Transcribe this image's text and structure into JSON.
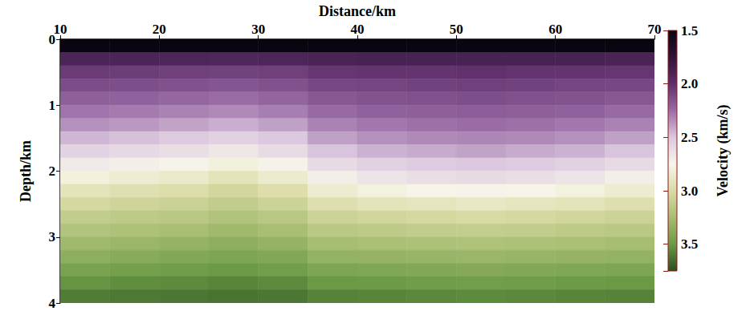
{
  "chart_data": {
    "type": "heatmap",
    "x_label": "Distance/km",
    "y_label": "Depth/km",
    "xlim": [
      10,
      70
    ],
    "xticks": [
      10,
      20,
      30,
      40,
      50,
      60,
      70
    ],
    "ylim": [
      0,
      4
    ],
    "yticks": [
      0,
      1,
      2,
      3,
      4
    ],
    "cells": {
      "x": [
        12.5,
        17.5,
        22.5,
        27.5,
        32.5,
        37.5,
        42.5,
        47.5,
        52.5,
        57.5,
        62.5,
        67.5
      ],
      "y": [
        0.1,
        0.3,
        0.5,
        0.7,
        0.9,
        1.1,
        1.3,
        1.5,
        1.7,
        1.9,
        2.1,
        2.3,
        2.5,
        2.7,
        2.9,
        3.1,
        3.3,
        3.5,
        3.7,
        3.9
      ],
      "values": [
        [
          1.5,
          1.5,
          1.5,
          1.5,
          1.5,
          1.5,
          1.5,
          1.5,
          1.5,
          1.5,
          1.5,
          1.5
        ],
        [
          1.9,
          1.9,
          1.91,
          1.92,
          1.91,
          1.89,
          1.88,
          1.88,
          1.88,
          1.88,
          1.88,
          1.89
        ],
        [
          2.05,
          2.06,
          2.07,
          2.08,
          2.07,
          2.03,
          2.02,
          2.02,
          2.01,
          2.02,
          2.02,
          2.03
        ],
        [
          2.12,
          2.13,
          2.14,
          2.16,
          2.14,
          2.1,
          2.09,
          2.08,
          2.07,
          2.08,
          2.09,
          2.1
        ],
        [
          2.2,
          2.21,
          2.23,
          2.25,
          2.22,
          2.17,
          2.15,
          2.14,
          2.13,
          2.14,
          2.15,
          2.17
        ],
        [
          2.27,
          2.29,
          2.31,
          2.33,
          2.3,
          2.24,
          2.21,
          2.2,
          2.19,
          2.2,
          2.21,
          2.24
        ],
        [
          2.35,
          2.37,
          2.4,
          2.43,
          2.39,
          2.31,
          2.28,
          2.26,
          2.25,
          2.26,
          2.28,
          2.31
        ],
        [
          2.45,
          2.48,
          2.51,
          2.55,
          2.5,
          2.39,
          2.35,
          2.33,
          2.32,
          2.33,
          2.35,
          2.39
        ],
        [
          2.56,
          2.59,
          2.62,
          2.67,
          2.61,
          2.49,
          2.44,
          2.42,
          2.4,
          2.42,
          2.44,
          2.49
        ],
        [
          2.68,
          2.71,
          2.74,
          2.8,
          2.73,
          2.6,
          2.55,
          2.52,
          2.5,
          2.52,
          2.55,
          2.6
        ],
        [
          2.8,
          2.83,
          2.86,
          2.92,
          2.85,
          2.71,
          2.65,
          2.62,
          2.6,
          2.62,
          2.65,
          2.71
        ],
        [
          2.92,
          2.95,
          2.98,
          3.03,
          2.97,
          2.84,
          2.79,
          2.76,
          2.74,
          2.76,
          2.79,
          2.84
        ],
        [
          3.02,
          3.05,
          3.08,
          3.12,
          3.07,
          2.96,
          2.92,
          2.9,
          2.88,
          2.9,
          2.92,
          2.96
        ],
        [
          3.12,
          3.14,
          3.16,
          3.2,
          3.16,
          3.07,
          3.04,
          3.02,
          3.0,
          3.02,
          3.04,
          3.07
        ],
        [
          3.2,
          3.22,
          3.24,
          3.28,
          3.24,
          3.16,
          3.14,
          3.12,
          3.11,
          3.12,
          3.14,
          3.16
        ],
        [
          3.28,
          3.3,
          3.32,
          3.35,
          3.32,
          3.25,
          3.23,
          3.22,
          3.21,
          3.22,
          3.23,
          3.25
        ],
        [
          3.36,
          3.38,
          3.4,
          3.42,
          3.4,
          3.33,
          3.32,
          3.31,
          3.3,
          3.31,
          3.32,
          3.33
        ],
        [
          3.44,
          3.46,
          3.48,
          3.5,
          3.47,
          3.42,
          3.41,
          3.4,
          3.39,
          3.4,
          3.41,
          3.42
        ],
        [
          3.52,
          3.54,
          3.55,
          3.57,
          3.55,
          3.5,
          3.49,
          3.48,
          3.47,
          3.48,
          3.49,
          3.5
        ],
        [
          3.6,
          3.61,
          3.62,
          3.63,
          3.62,
          3.58,
          3.57,
          3.56,
          3.55,
          3.56,
          3.57,
          3.58
        ]
      ]
    },
    "colorbar": {
      "label": "Velocity (km/s)",
      "range": [
        1.5,
        3.75
      ],
      "ticks": [
        1.5,
        {
          "value": 2,
          "label": "2.0"
        },
        2.5,
        {
          "value": 3,
          "label": "3.0"
        },
        3.5
      ],
      "colors": [
        "#0a0510",
        "#2e1538",
        "#5e2f6b",
        "#9a6ca6",
        "#dcc8df",
        "#f7f6ea",
        "#d9dba4",
        "#a7bd72",
        "#6a9a45",
        "#2a4f1f"
      ]
    }
  }
}
